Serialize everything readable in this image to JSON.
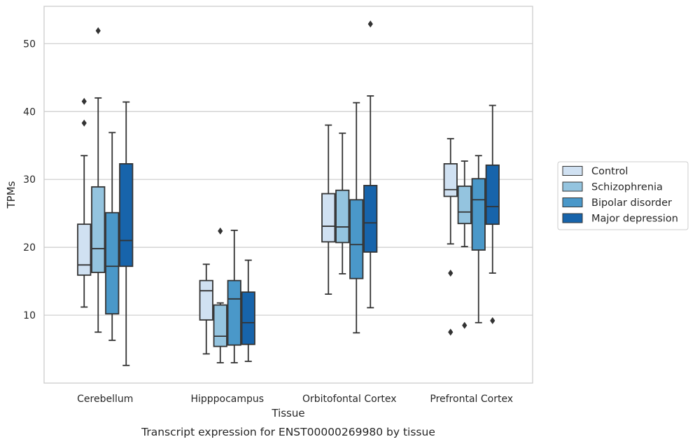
{
  "caption": "Transcript expression for ENST00000269980 by tissue",
  "chart_data": {
    "type": "box",
    "title": "",
    "xlabel": "Tissue",
    "ylabel": "TPMs",
    "ylim": [
      0,
      55.5
    ],
    "yticks": [
      10,
      20,
      30,
      40,
      50
    ],
    "grid": "horizontal",
    "legend_position": "right",
    "categories": [
      "Cerebellum",
      "Hipppocampus",
      "Orbitofontal Cortex",
      "Prefrontal Cortex"
    ],
    "series": [
      {
        "name": "Control",
        "color": "#d0e1f2",
        "boxes": [
          {
            "whisker_low": 11.2,
            "q1": 15.9,
            "median": 17.4,
            "q3": 23.4,
            "whisker_high": 33.5,
            "outliers": [
              38.3,
              41.5
            ]
          },
          {
            "whisker_low": 4.3,
            "q1": 9.3,
            "median": 13.6,
            "q3": 15.1,
            "whisker_high": 17.5,
            "outliers": []
          },
          {
            "whisker_low": 13.1,
            "q1": 20.8,
            "median": 23.1,
            "q3": 27.9,
            "whisker_high": 38.0,
            "outliers": []
          },
          {
            "whisker_low": 20.5,
            "q1": 27.5,
            "median": 28.5,
            "q3": 32.3,
            "whisker_high": 36.0,
            "outliers": [
              16.2,
              7.5
            ]
          }
        ]
      },
      {
        "name": "Schizophrenia",
        "color": "#94c4df",
        "boxes": [
          {
            "whisker_low": 7.5,
            "q1": 16.3,
            "median": 19.8,
            "q3": 28.9,
            "whisker_high": 42.0,
            "outliers": [
              51.9
            ]
          },
          {
            "whisker_low": 3.0,
            "q1": 5.4,
            "median": 6.9,
            "q3": 11.5,
            "whisker_high": 11.8,
            "outliers": [
              22.4
            ]
          },
          {
            "whisker_low": 16.1,
            "q1": 20.7,
            "median": 23.0,
            "q3": 28.4,
            "whisker_high": 36.8,
            "outliers": []
          },
          {
            "whisker_low": 20.1,
            "q1": 23.5,
            "median": 25.2,
            "q3": 29.0,
            "whisker_high": 32.7,
            "outliers": [
              8.5
            ]
          }
        ]
      },
      {
        "name": "Bipolar disorder",
        "color": "#4a98c9",
        "boxes": [
          {
            "whisker_low": 6.3,
            "q1": 10.2,
            "median": 17.2,
            "q3": 25.1,
            "whisker_high": 36.9,
            "outliers": []
          },
          {
            "whisker_low": 3.0,
            "q1": 5.6,
            "median": 12.4,
            "q3": 15.1,
            "whisker_high": 22.5,
            "outliers": []
          },
          {
            "whisker_low": 7.4,
            "q1": 15.4,
            "median": 20.4,
            "q3": 27.0,
            "whisker_high": 41.3,
            "outliers": []
          },
          {
            "whisker_low": 8.9,
            "q1": 19.6,
            "median": 27.0,
            "q3": 30.1,
            "whisker_high": 33.5,
            "outliers": []
          }
        ]
      },
      {
        "name": "Major depression",
        "color": "#1764ab",
        "boxes": [
          {
            "whisker_low": 2.6,
            "q1": 17.2,
            "median": 21.0,
            "q3": 32.3,
            "whisker_high": 41.4,
            "outliers": []
          },
          {
            "whisker_low": 3.2,
            "q1": 5.7,
            "median": 8.9,
            "q3": 13.4,
            "whisker_high": 18.1,
            "outliers": []
          },
          {
            "whisker_low": 11.1,
            "q1": 19.3,
            "median": 23.6,
            "q3": 29.1,
            "whisker_high": 42.3,
            "outliers": [
              52.9
            ]
          },
          {
            "whisker_low": 16.2,
            "q1": 23.4,
            "median": 26.0,
            "q3": 32.1,
            "whisker_high": 40.9,
            "outliers": [
              9.2
            ]
          }
        ]
      }
    ]
  }
}
